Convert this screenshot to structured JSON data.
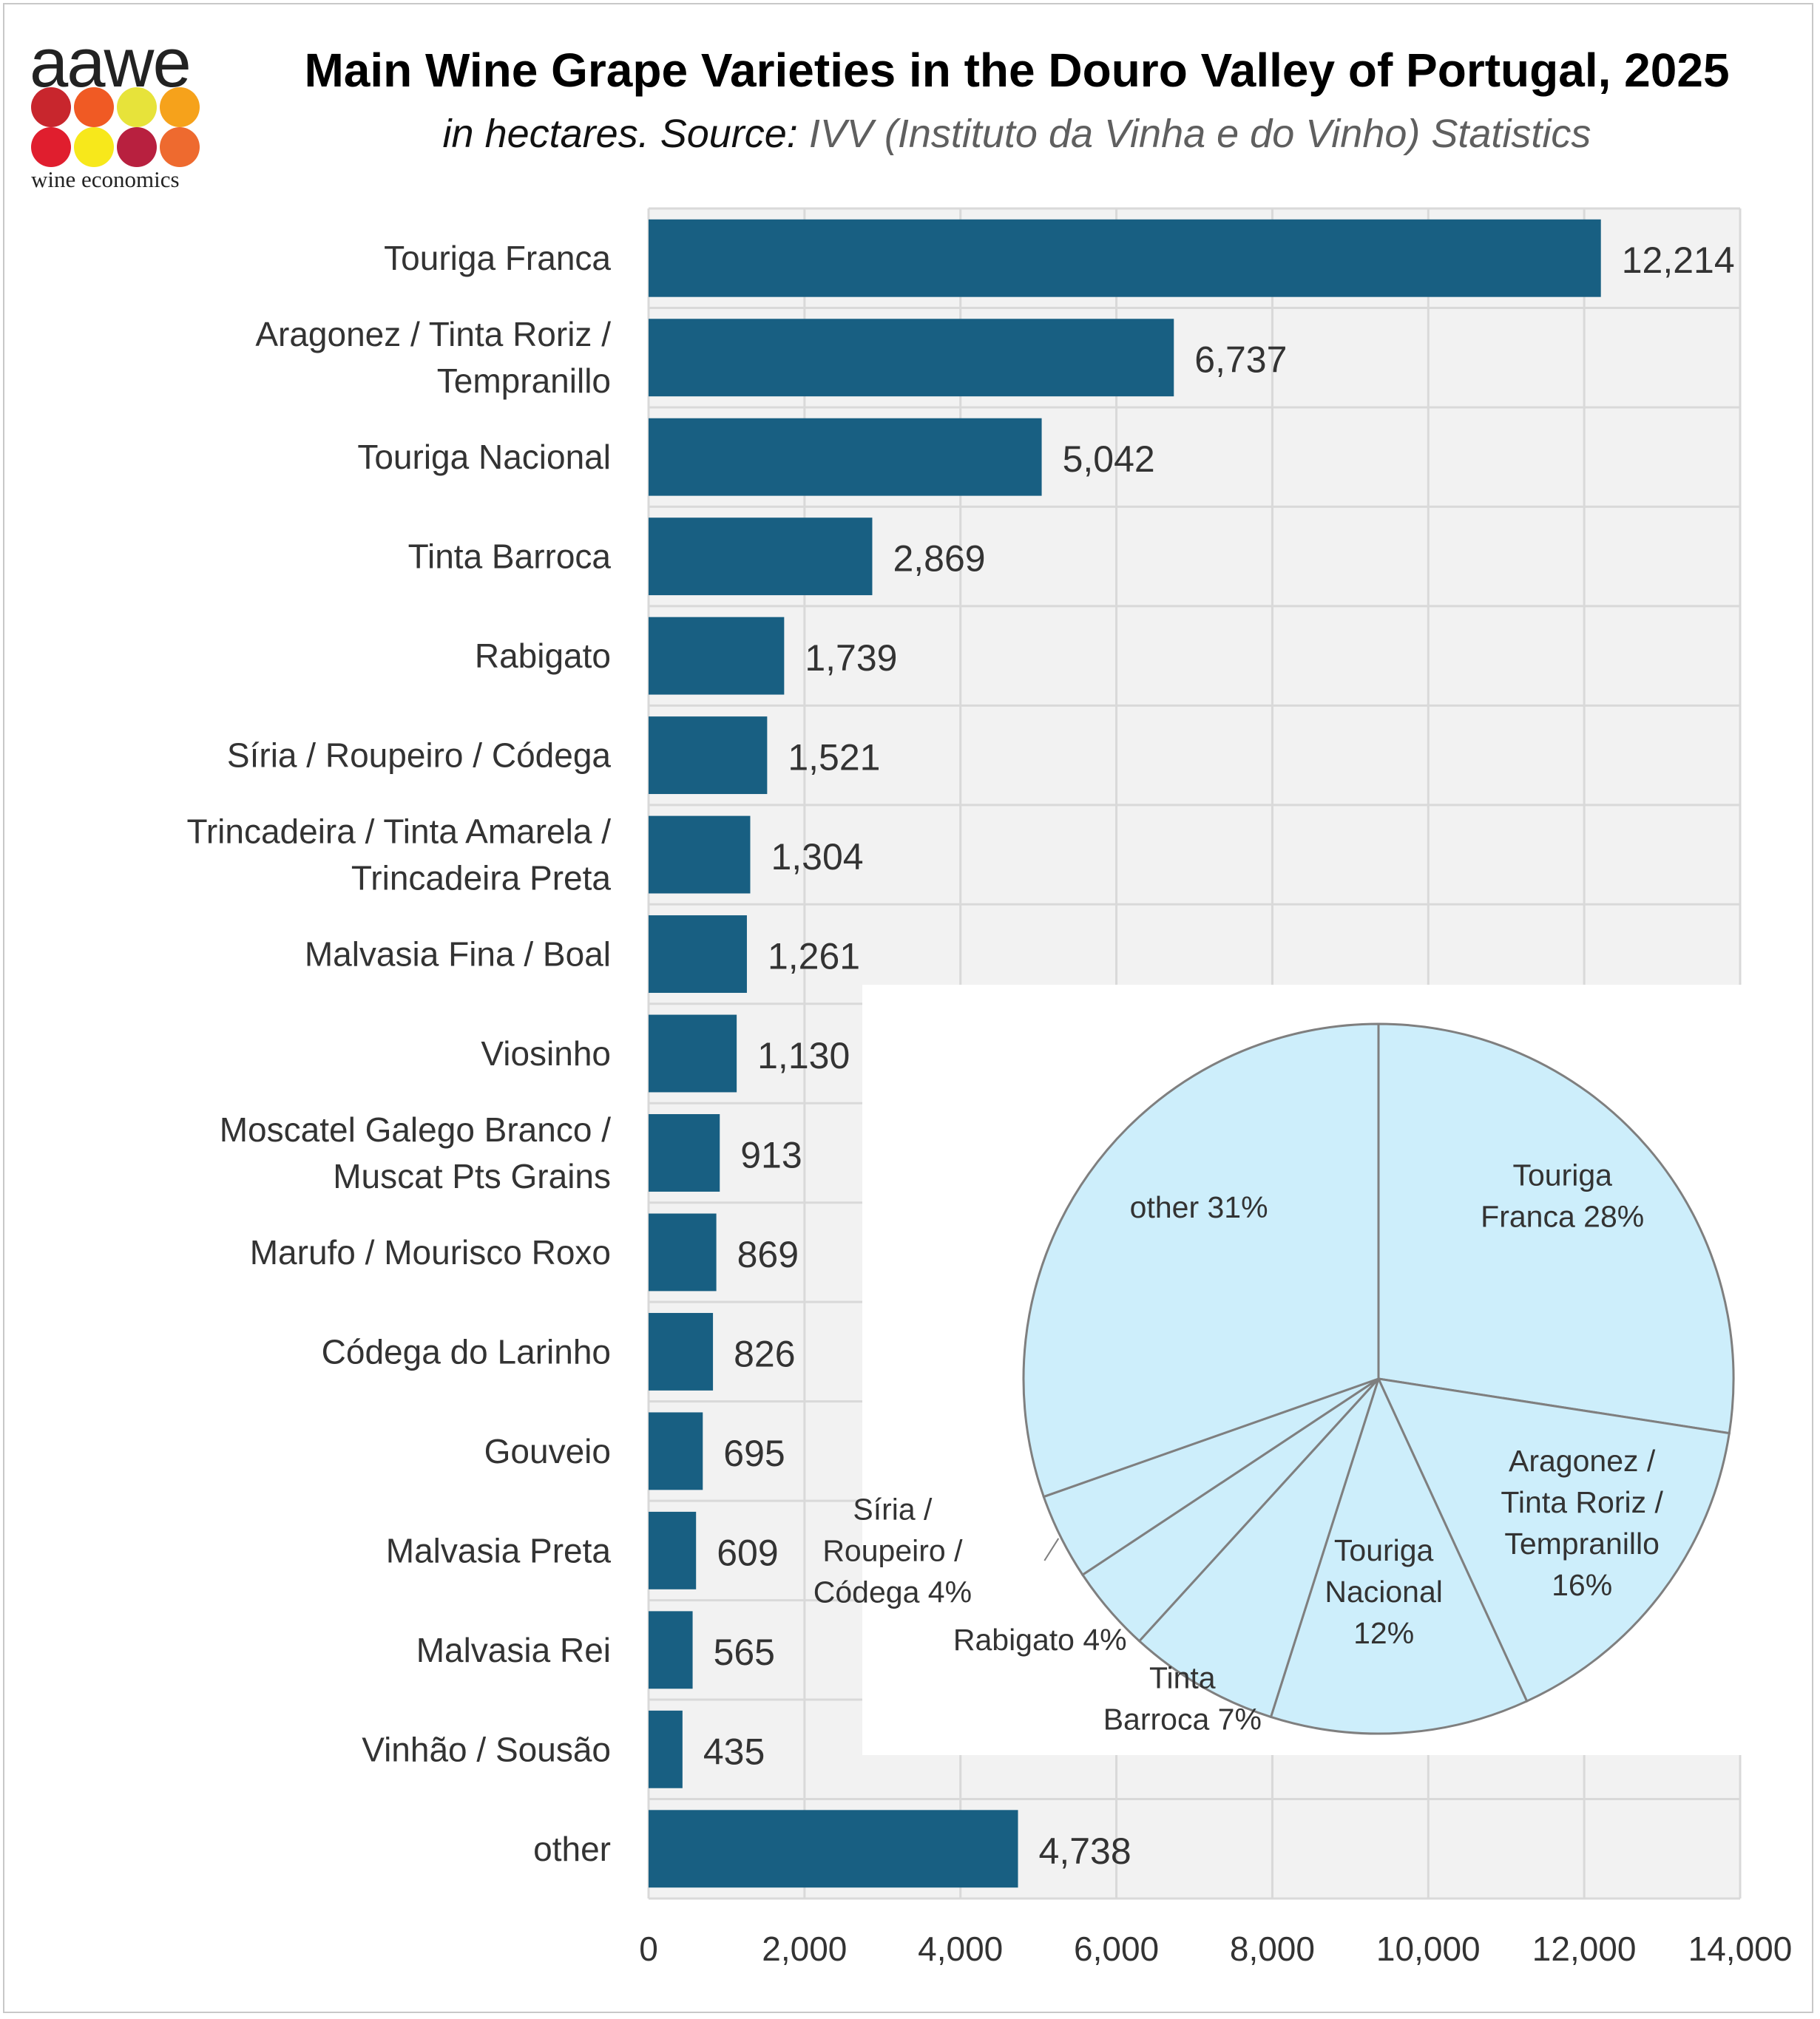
{
  "logo": {
    "word": "aawe",
    "sub": "wine economics",
    "dot_colors": [
      "#c8262d",
      "#f05a24",
      "#e7e33a",
      "#f6a21b",
      "#e01e2e",
      "#f7e81b",
      "#b8203f",
      "#ee6a2f"
    ]
  },
  "header": {
    "title": "Main Wine Grape Varieties in the Douro Valley of Portugal, 2025",
    "subtitle_a": "in hectares. Source: ",
    "subtitle_b": "IVV (Instituto da Vinha e do Vinho) Statistics"
  },
  "colors": {
    "bar": "#185f82",
    "plot_bg": "#f2f2f2",
    "grid": "#d9d9d9",
    "pie_fill": "#cdeefb",
    "pie_stroke": "#7f7f7f"
  },
  "chart_data": [
    {
      "type": "bar",
      "orientation": "horizontal",
      "categories": [
        "Touriga Franca",
        "Aragonez / Tinta Roriz / Tempranillo",
        "Touriga Nacional",
        "Tinta Barroca",
        "Rabigato",
        "Síria / Roupeiro / Códega",
        "Trincadeira / Tinta Amarela / Trincadeira Preta",
        "Malvasia Fina / Boal",
        "Viosinho",
        "Moscatel Galego Branco / Muscat Pts Grains",
        "Marufo / Mourisco Roxo",
        "Códega do Larinho",
        "Gouveio",
        "Malvasia Preta",
        "Malvasia Rei",
        "Vinhão / Sousão",
        "other"
      ],
      "category_lines": [
        [
          "Touriga Franca"
        ],
        [
          "Aragonez / Tinta Roriz /",
          "Tempranillo"
        ],
        [
          "Touriga Nacional"
        ],
        [
          "Tinta Barroca"
        ],
        [
          "Rabigato"
        ],
        [
          "Síria / Roupeiro / Códega"
        ],
        [
          "Trincadeira / Tinta Amarela /",
          "Trincadeira Preta"
        ],
        [
          "Malvasia Fina / Boal"
        ],
        [
          "Viosinho"
        ],
        [
          "Moscatel Galego Branco /",
          "Muscat Pts Grains"
        ],
        [
          "Marufo / Mourisco Roxo"
        ],
        [
          "Códega do Larinho"
        ],
        [
          "Gouveio"
        ],
        [
          "Malvasia Preta"
        ],
        [
          "Malvasia Rei"
        ],
        [
          "Vinhão / Sousão"
        ],
        [
          "other"
        ]
      ],
      "values": [
        12214,
        6737,
        5042,
        2869,
        1739,
        1521,
        1304,
        1261,
        1130,
        913,
        869,
        826,
        695,
        609,
        565,
        435,
        4738
      ],
      "value_labels": [
        "12,214",
        "6,737",
        "5,042",
        "2,869",
        "1,739",
        "1,521",
        "1,304",
        "1,261",
        "1,130",
        "913",
        "869",
        "826",
        "695",
        "609",
        "565",
        "435",
        "4,738"
      ],
      "xlim": [
        0,
        14000
      ],
      "xticks": [
        0,
        2000,
        4000,
        6000,
        8000,
        10000,
        12000,
        14000
      ],
      "xtick_labels": [
        "0",
        "2,000",
        "4,000",
        "6,000",
        "8,000",
        "10,000",
        "12,000",
        "14,000"
      ],
      "grid": true
    },
    {
      "type": "pie",
      "labels": [
        "Touriga Franca",
        "Aragonez / Tinta Roriz / Tempranillo",
        "Touriga Nacional",
        "Tinta Barroca",
        "Rabigato",
        "Síria / Roupeiro / Códega",
        "other"
      ],
      "percent": [
        28,
        16,
        12,
        7,
        4,
        4,
        31
      ],
      "label_lines": [
        [
          "Touriga",
          "Franca 28%"
        ],
        [
          "Aragonez /",
          "Tinta Roriz /",
          "Tempranillo",
          "16%"
        ],
        [
          "Touriga",
          "Nacional",
          "12%"
        ],
        [
          "Tinta",
          "Barroca 7%"
        ],
        [
          "Rabigato 4%"
        ],
        [
          "Síria /",
          "Roupeiro /",
          "Códega 4%"
        ],
        [
          "other  31%"
        ]
      ]
    }
  ]
}
